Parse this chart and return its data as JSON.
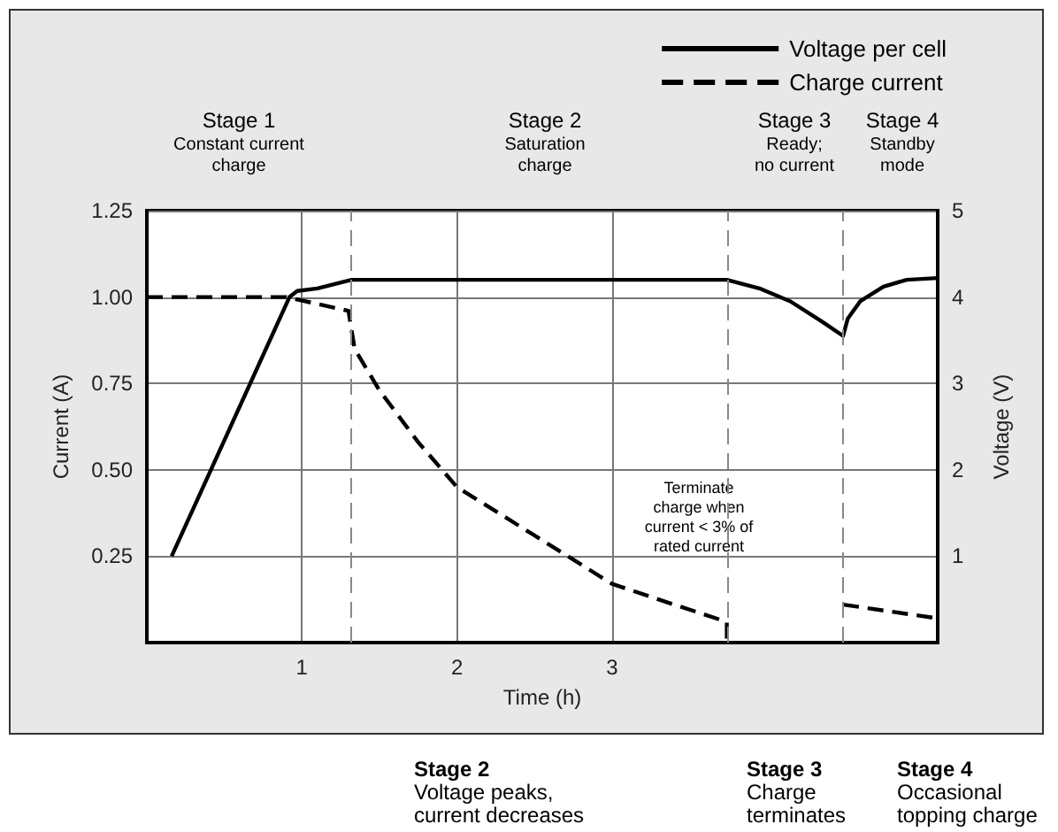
{
  "chart_data": {
    "type": "line",
    "xlabel": "Time (h)",
    "ylabel": "Current (A)",
    "y2label": "Voltage (V)",
    "xlim": [
      0,
      5.1
    ],
    "xticks": [
      1,
      2,
      3
    ],
    "ylim": [
      0,
      1.25
    ],
    "yticks": [
      0.25,
      {
        "value": 0.5,
        "label": "0.50"
      },
      0.75,
      {
        "value": 1,
        "label": "1.00"
      },
      1.25
    ],
    "y2lim": [
      0,
      5
    ],
    "y2ticks": [
      1,
      2,
      3,
      4,
      5
    ],
    "series": [
      {
        "name": "Voltage per cell",
        "color": "#000000",
        "axis": "y2",
        "line_style": "solid",
        "x": [
          0.16,
          0.92,
          0.97,
          1.1,
          1.32,
          3.74,
          3.95,
          4.15,
          4.35,
          4.49,
          4.52,
          4.6,
          4.75,
          4.9,
          5.1
        ],
        "values": [
          1,
          4,
          4.07,
          4.1,
          4.2,
          4.2,
          4.1,
          3.95,
          3.72,
          3.55,
          3.75,
          3.95,
          4.12,
          4.2,
          4.22
        ]
      },
      {
        "name": "Charge current",
        "color": "#000000",
        "line_style": "dashed",
        "x": [
          0,
          0.9,
          1.1,
          1.3,
          1.34,
          1.5,
          1.75,
          2,
          2.5,
          3,
          3.4,
          3.74,
          3.74,
          4.1,
          4.49,
          5.1
        ],
        "values": [
          1,
          1,
          0.98,
          0.96,
          0.85,
          0.73,
          0.58,
          0.45,
          0.31,
          0.17,
          0.11,
          0.06,
          0,
          null,
          0.11,
          0.07
        ]
      }
    ],
    "ref_lines": [
      {
        "axis": "x",
        "value": 1.32,
        "color": "#888888",
        "line_style": "dashed"
      },
      {
        "axis": "x",
        "value": 3.74,
        "color": "#888888",
        "line_style": "dashed"
      },
      {
        "axis": "x",
        "value": 4.49,
        "color": "#888888",
        "line_style": "dashed"
      }
    ],
    "annotations": [
      "Stage 1\nConstant current\ncharge",
      "Stage 2\nSaturation\ncharge",
      "Stage 3\nReady;\nno current",
      "Stage 4\nStandby\nmode",
      "Terminate\ncharge when\ncurrent < 3% of\nrated current",
      "Stage 2\nVoltage peaks,\ncurrent decreases",
      "Stage 3\nCharge\nterminates",
      "Stage 4\nOccasional\ntopping charge"
    ],
    "grid": true,
    "legend": "top right",
    "marker": "none"
  }
}
